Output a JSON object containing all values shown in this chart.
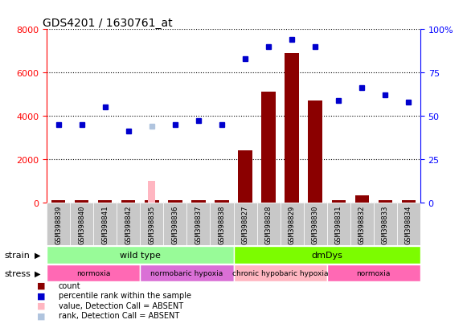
{
  "title": "GDS4201 / 1630761_at",
  "samples": [
    "GSM398839",
    "GSM398840",
    "GSM398841",
    "GSM398842",
    "GSM398835",
    "GSM398836",
    "GSM398837",
    "GSM398838",
    "GSM398827",
    "GSM398828",
    "GSM398829",
    "GSM398830",
    "GSM398831",
    "GSM398832",
    "GSM398833",
    "GSM398834"
  ],
  "count_values": [
    80,
    80,
    80,
    80,
    80,
    80,
    80,
    80,
    2400,
    5100,
    6900,
    4700,
    80,
    300,
    80,
    80
  ],
  "rank_values_pct": [
    45,
    45,
    55,
    41,
    44,
    45,
    47,
    45,
    83,
    90,
    94,
    90,
    59,
    66,
    62,
    58
  ],
  "rank_absent": [
    false,
    false,
    false,
    false,
    true,
    false,
    false,
    false,
    false,
    false,
    false,
    false,
    false,
    false,
    false,
    false
  ],
  "rank_absent_pct": [
    null,
    null,
    null,
    null,
    44,
    null,
    null,
    null,
    null,
    null,
    null,
    null,
    null,
    null,
    null,
    null
  ],
  "special_absent_count": [
    null,
    null,
    null,
    null,
    1000,
    null,
    null,
    null,
    null,
    null,
    null,
    null,
    null,
    null,
    null,
    null
  ],
  "ylim_left": [
    0,
    8000
  ],
  "ylim_right": [
    0,
    100
  ],
  "left_ticks": [
    0,
    2000,
    4000,
    6000,
    8000
  ],
  "right_ticks": [
    0,
    25,
    50,
    75,
    100
  ],
  "strain_groups": [
    {
      "label": "wild type",
      "start": 0,
      "end": 8,
      "color": "#98FB98"
    },
    {
      "label": "dmDys",
      "start": 8,
      "end": 16,
      "color": "#7CFC00"
    }
  ],
  "stress_groups": [
    {
      "label": "normoxia",
      "start": 0,
      "end": 4,
      "color": "#FF69B4"
    },
    {
      "label": "normobaric hypoxia",
      "start": 4,
      "end": 8,
      "color": "#DA70D6"
    },
    {
      "label": "chronic hypobaric hypoxia",
      "start": 8,
      "end": 12,
      "color": "#FFB6C1"
    },
    {
      "label": "normoxia",
      "start": 12,
      "end": 16,
      "color": "#FF69B4"
    }
  ],
  "bar_color": "#8B0000",
  "rank_color": "#0000CD",
  "absent_rank_color": "#B0C4DE",
  "absent_count_color": "#FFB6C1",
  "cell_bg": "#C8C8C8",
  "plot_bg": "#FFFFFF",
  "grid_color": "#000000"
}
